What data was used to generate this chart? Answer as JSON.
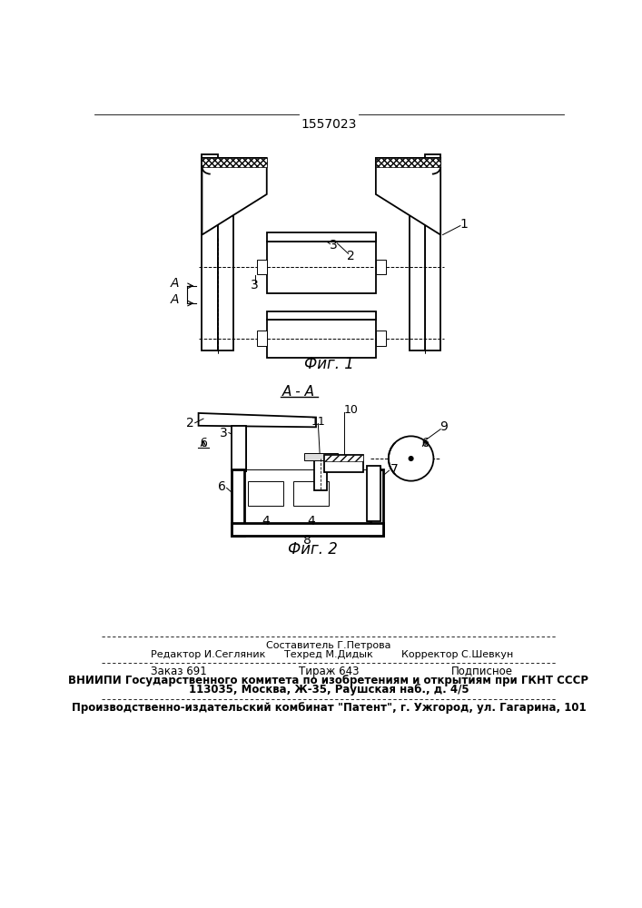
{
  "patent_number": "1557023",
  "fig1_caption": "Фиг. 1",
  "fig2_caption": "Фиг. 2",
  "fig2_title": "А - А",
  "bg_color": "#ffffff",
  "line_color": "#000000",
  "footer_line0_mid": "Составитель Г.Петрова",
  "footer_line1_left": "Редактор И.Сегляник",
  "footer_line1_mid": "Техред М.Дидык",
  "footer_line1_right": "Корректор С.Шевкун",
  "footer_line2_left": "Заказ 691",
  "footer_line2_mid": "Тираж 643",
  "footer_line2_right": "Подписное",
  "footer_line3": "ВНИИПИ Государственного комитета по изобретениям и открытиям при ГКНТ СССР",
  "footer_line4": "113035, Москва, Ж-35, Раушская наб., д. 4/5",
  "footer_line5": "Производственно-издательский комбинат \"Патент\", г. Ужгород, ул. Гагарина, 101",
  "fig_width": 7.07,
  "fig_height": 10.0,
  "dpi": 100
}
